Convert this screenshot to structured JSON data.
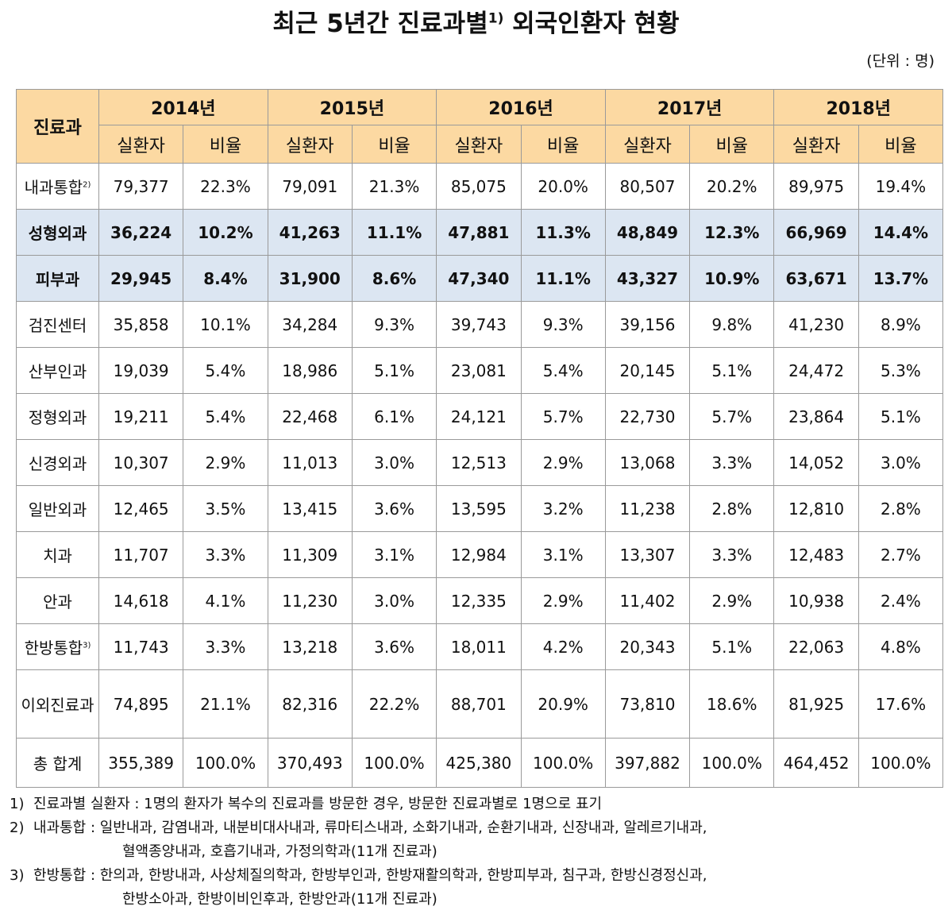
{
  "title": {
    "main": "최근 5년간 진료과별",
    "note": "1)",
    "rest": "외국인환자 현황"
  },
  "unit": "(단위 : 명)",
  "table": {
    "corner": "진료과",
    "years": [
      "2014년",
      "2015년",
      "2016년",
      "2017년",
      "2018년"
    ],
    "subcolumns": [
      "실환자",
      "비율"
    ],
    "rows": [
      {
        "label": "내과통합",
        "note": "2)",
        "cells": [
          "79,377",
          "22.3%",
          "79,091",
          "21.3%",
          "85,075",
          "20.0%",
          "80,507",
          "20.2%",
          "89,975",
          "19.4%"
        ]
      },
      {
        "label": "성형외과",
        "highlight": true,
        "cells": [
          "36,224",
          "10.2%",
          "41,263",
          "11.1%",
          "47,881",
          "11.3%",
          "48,849",
          "12.3%",
          "66,969",
          "14.4%"
        ]
      },
      {
        "label": "피부과",
        "highlight": true,
        "cells": [
          "29,945",
          "8.4%",
          "31,900",
          "8.6%",
          "47,340",
          "11.1%",
          "43,327",
          "10.9%",
          "63,671",
          "13.7%"
        ]
      },
      {
        "label": "검진센터",
        "cells": [
          "35,858",
          "10.1%",
          "34,284",
          "9.3%",
          "39,743",
          "9.3%",
          "39,156",
          "9.8%",
          "41,230",
          "8.9%"
        ]
      },
      {
        "label": "산부인과",
        "cells": [
          "19,039",
          "5.4%",
          "18,986",
          "5.1%",
          "23,081",
          "5.4%",
          "20,145",
          "5.1%",
          "24,472",
          "5.3%"
        ]
      },
      {
        "label": "정형외과",
        "cells": [
          "19,211",
          "5.4%",
          "22,468",
          "6.1%",
          "24,121",
          "5.7%",
          "22,730",
          "5.7%",
          "23,864",
          "5.1%"
        ]
      },
      {
        "label": "신경외과",
        "cells": [
          "10,307",
          "2.9%",
          "11,013",
          "3.0%",
          "12,513",
          "2.9%",
          "13,068",
          "3.3%",
          "14,052",
          "3.0%"
        ]
      },
      {
        "label": "일반외과",
        "cells": [
          "12,465",
          "3.5%",
          "13,415",
          "3.6%",
          "13,595",
          "3.2%",
          "11,238",
          "2.8%",
          "12,810",
          "2.8%"
        ]
      },
      {
        "label": "치과",
        "cells": [
          "11,707",
          "3.3%",
          "11,309",
          "3.1%",
          "12,984",
          "3.1%",
          "13,307",
          "3.3%",
          "12,483",
          "2.7%"
        ]
      },
      {
        "label": "안과",
        "cells": [
          "14,618",
          "4.1%",
          "11,230",
          "3.0%",
          "12,335",
          "2.9%",
          "11,402",
          "2.9%",
          "10,938",
          "2.4%"
        ]
      },
      {
        "label": "한방통합",
        "note": "3)",
        "cells": [
          "11,743",
          "3.3%",
          "13,218",
          "3.6%",
          "18,011",
          "4.2%",
          "20,343",
          "5.1%",
          "22,063",
          "4.8%"
        ]
      },
      {
        "label": "이외진료과",
        "cells": [
          "74,895",
          "21.1%",
          "82,316",
          "22.2%",
          "88,701",
          "20.9%",
          "73,810",
          "18.6%",
          "81,925",
          "17.6%"
        ]
      },
      {
        "label": "총 합계",
        "cells": [
          "355,389",
          "100.0%",
          "370,493",
          "100.0%",
          "425,380",
          "100.0%",
          "397,882",
          "100.0%",
          "464,452",
          "100.0%"
        ]
      }
    ]
  },
  "footnotes": [
    {
      "marker": "1)",
      "lines": [
        "진료과별 실환자 : 1명의 환자가 복수의 진료과를 방문한 경우, 방문한 진료과별로 1명으로 표기"
      ]
    },
    {
      "marker": "2)",
      "lines": [
        "내과통합 : 일반내과, 감염내과, 내분비대사내과, 류마티스내과, 소화기내과, 순환기내과, 신장내과, 알레르기내과,",
        "혈액종양내과, 호흡기내과, 가정의학과(11개 진료과)"
      ]
    },
    {
      "marker": "3)",
      "lines": [
        "한방통합 : 한의과, 한방내과, 사상체질의학과, 한방부인과, 한방재활의학과, 한방피부과, 침구과, 한방신경정신과,",
        "한방소아과, 한방이비인후과, 한방안과(11개 진료과)"
      ]
    }
  ]
}
